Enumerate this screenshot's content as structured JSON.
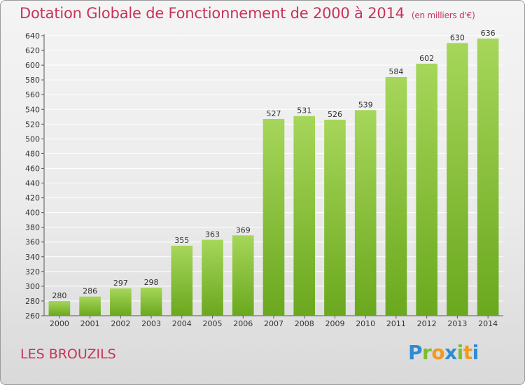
{
  "header": {
    "title": "Dotation Globale de Fonctionnement de 2000 à 2014",
    "subtitle": "(en milliers d'€)"
  },
  "footer": {
    "commune": "LES BROUZILS",
    "logo_text": "Proxiti"
  },
  "colors": {
    "title": "#c8325a",
    "bar_light": "#a6d65a",
    "bar_dark": "#6aa81e",
    "grid": "#ffffff"
  },
  "chart_data": {
    "type": "bar",
    "title": "Dotation Globale de Fonctionnement de 2000 à 2014",
    "subtitle": "(en milliers d'€)",
    "xlabel": "",
    "ylabel": "",
    "categories": [
      "2000",
      "2001",
      "2002",
      "2003",
      "2004",
      "2005",
      "2006",
      "2007",
      "2008",
      "2009",
      "2010",
      "2011",
      "2012",
      "2013",
      "2014"
    ],
    "values": [
      280,
      286,
      297,
      298,
      355,
      363,
      369,
      527,
      531,
      526,
      539,
      584,
      602,
      630,
      636
    ],
    "ylim": [
      260,
      640
    ],
    "yticks": [
      260,
      280,
      300,
      320,
      340,
      360,
      380,
      400,
      420,
      440,
      460,
      480,
      500,
      520,
      540,
      560,
      580,
      600,
      620,
      640
    ],
    "grid": true,
    "data_labels": true
  }
}
